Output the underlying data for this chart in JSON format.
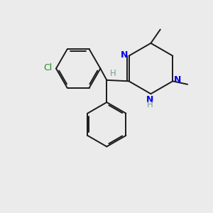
{
  "bg_color": "#ebebeb",
  "bond_color": "#1a1a1a",
  "n_color": "#0000ee",
  "cl_color": "#228822",
  "h_color": "#7a9a9a",
  "lw": 1.4,
  "dbg": 0.07,
  "xlim": [
    0,
    10
  ],
  "ylim": [
    0,
    10
  ]
}
